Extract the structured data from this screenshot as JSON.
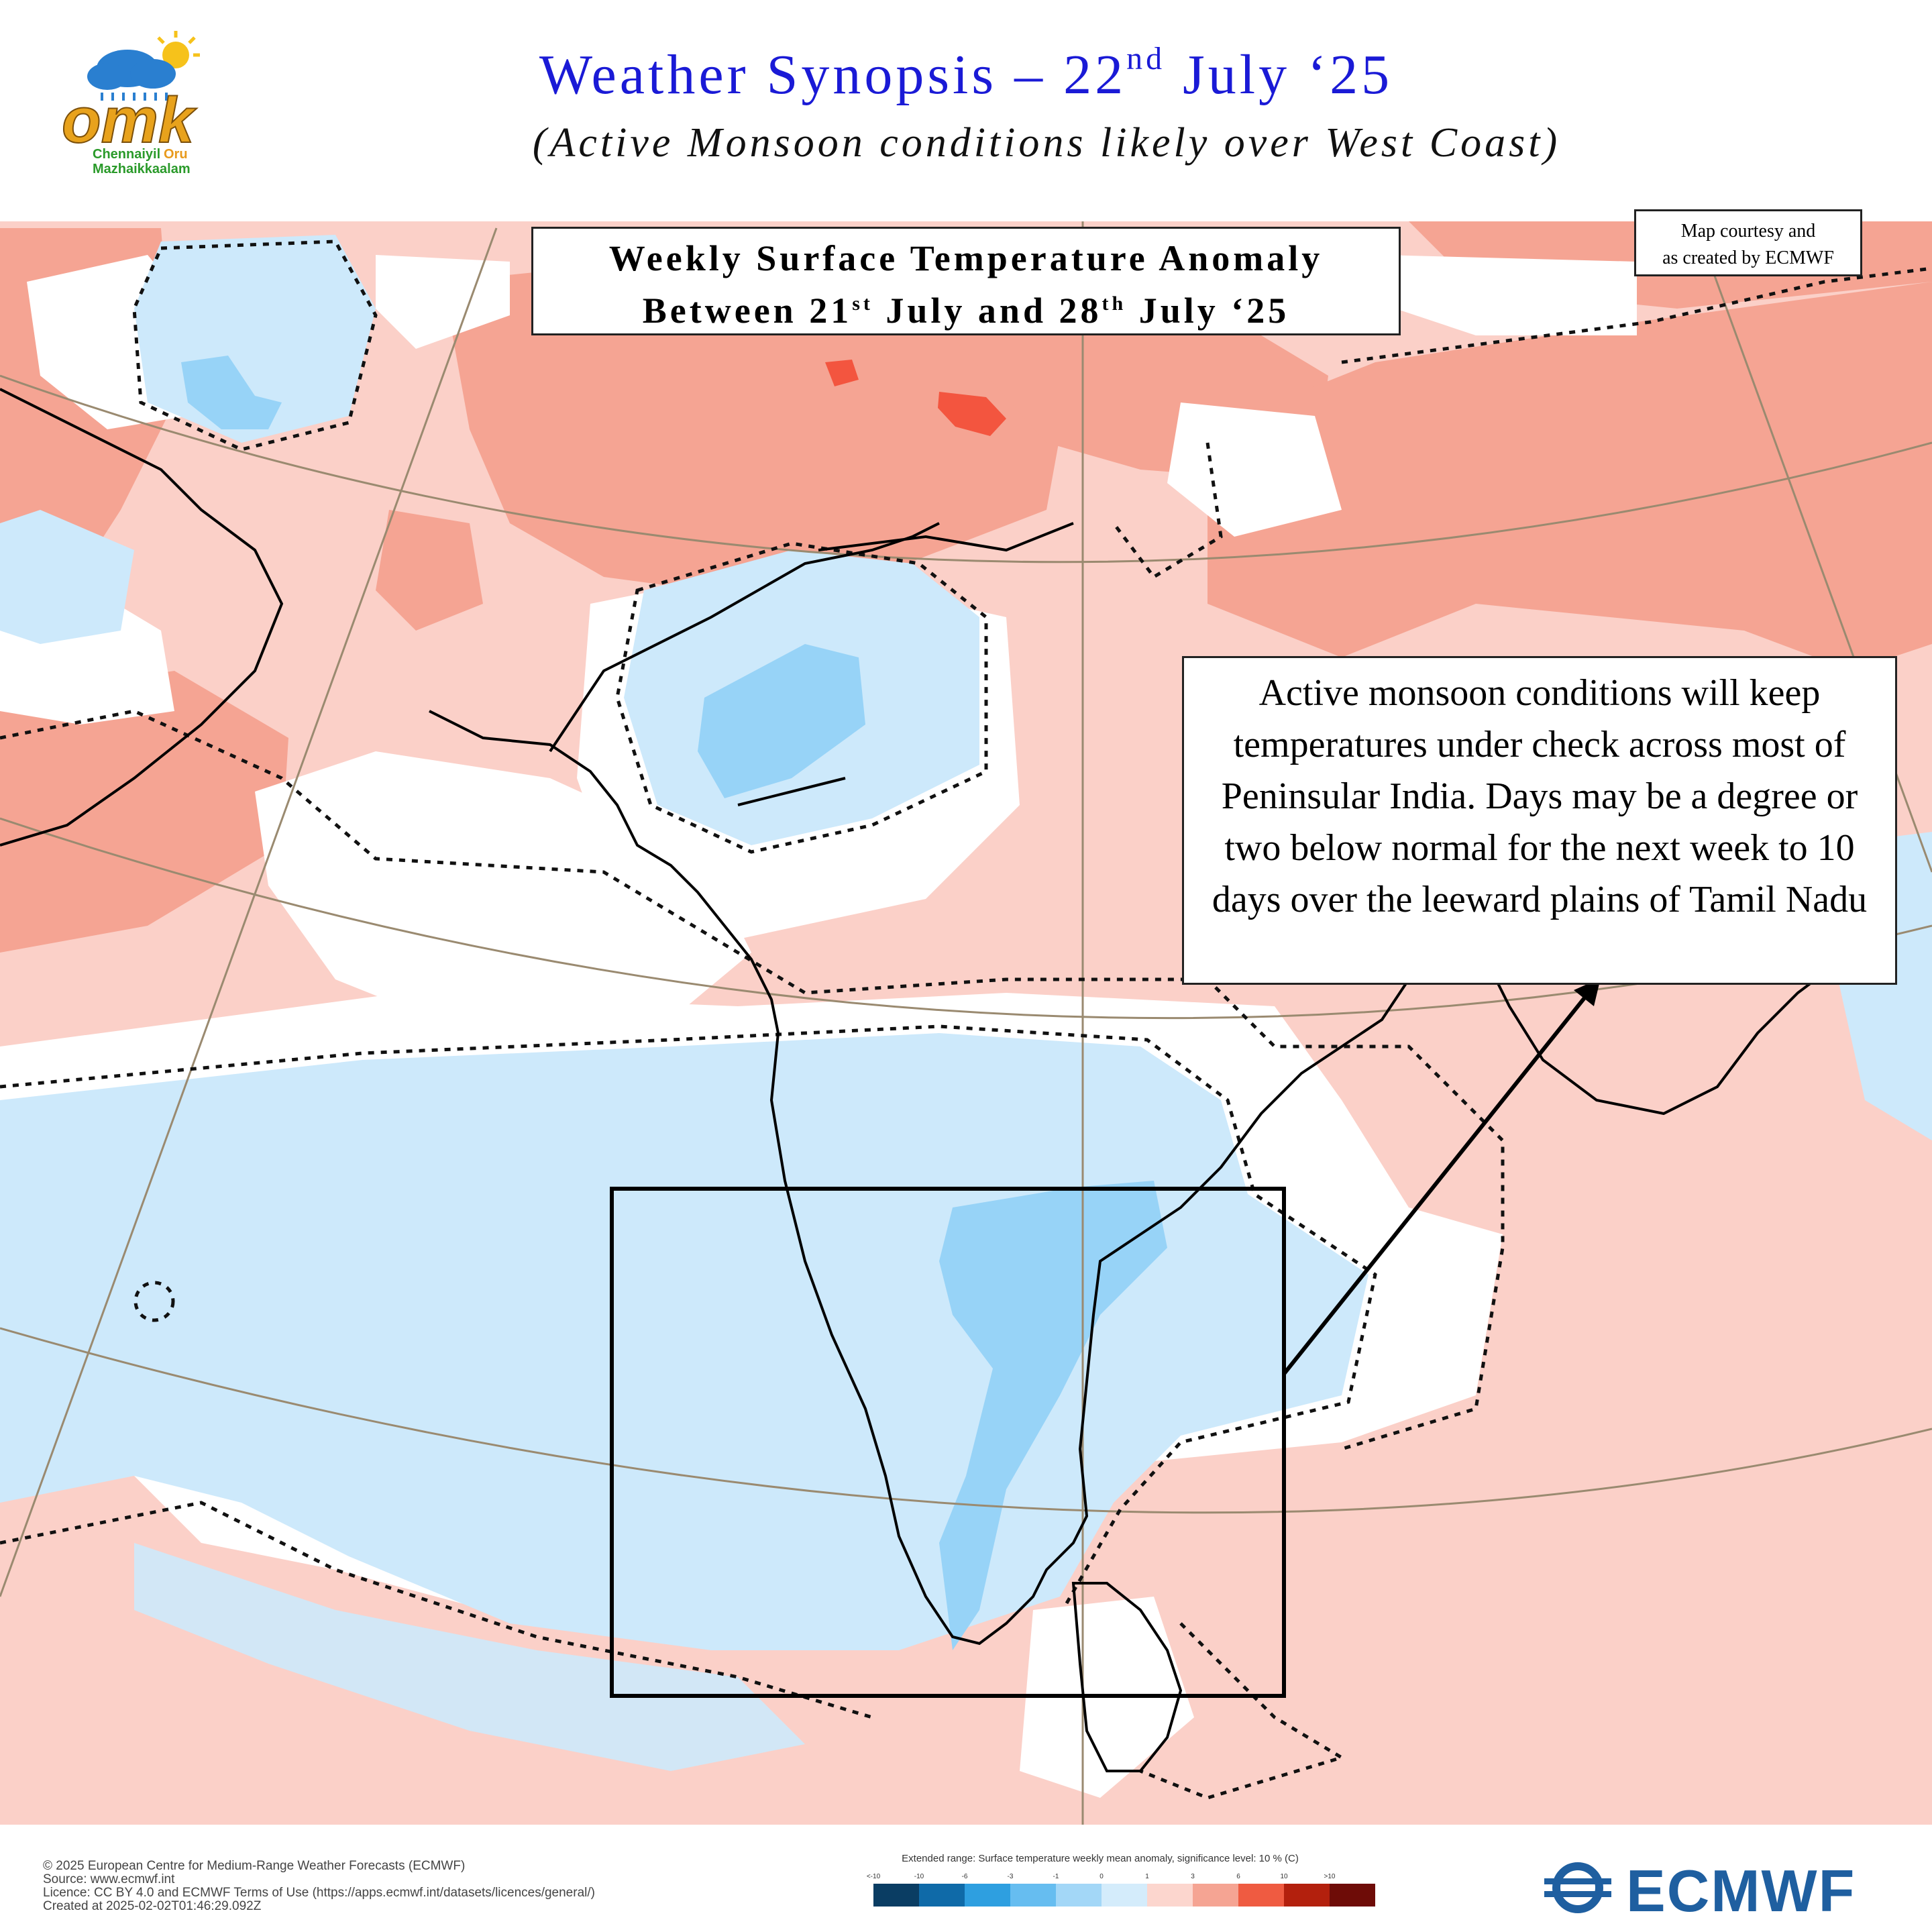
{
  "header": {
    "logo": {
      "brand_letters": "omk",
      "line1_a": "Chennaiyil",
      "line1_b": "Oru",
      "line2": "Mazhaikkaalam"
    },
    "title_main": "Weather Synopsis – 22",
    "title_sup": "nd",
    "title_end": " July ‘25",
    "subtitle": "(Active Monsoon conditions likely over West Coast)"
  },
  "map": {
    "title_line1": "Weekly Surface Temperature Anomaly",
    "title_line2_a": "Between 21",
    "title_line2_sup1": "st",
    "title_line2_b": " July and 28",
    "title_line2_sup2": "th",
    "title_line2_c": " July ‘25",
    "courtesy_line1": "Map courtesy and",
    "courtesy_line2": "as created by ECMWF",
    "callout_text": "Active monsoon conditions will keep temperatures under check across most of Peninsular India. Days may be a degree or two below normal for the next week to 10 days over the leeward plains of Tamil Nadu",
    "colors": {
      "warm_light": "#fbd0c8",
      "warm_mid": "#f5a493",
      "warm_strong": "#f3553f",
      "cool_light": "#cde9fb",
      "cool_mid": "#97d3f7",
      "highlight_box": "#000000"
    }
  },
  "footer": {
    "copyright": "© 2025 European Centre for Medium-Range Weather Forecasts (ECMWF)",
    "source": "Source: www.ecmwf.int",
    "licence": "Licence: CC BY 4.0 and ECMWF Terms of Use (https://apps.ecmwf.int/datasets/licences/general/)",
    "created": "Created at 2025-02-02T01:46:29.092Z",
    "legend_title": "Extended range: Surface temperature weekly mean anomaly, significance level: 10 % (C)",
    "legend_ticks": [
      "<-10",
      "-10",
      "-6",
      "-3",
      "-1",
      "0",
      "1",
      "3",
      "6",
      "10",
      ">10"
    ],
    "legend_colors": [
      "#0a3d63",
      "#0f6aa8",
      "#2e9fe0",
      "#66bdf0",
      "#a3d7f7",
      "#d4ecfb",
      "#fcd6ce",
      "#f5a493",
      "#ef5b41",
      "#b3200d",
      "#6e0c07"
    ],
    "ecmwf_logo_text": "ECMWF"
  }
}
